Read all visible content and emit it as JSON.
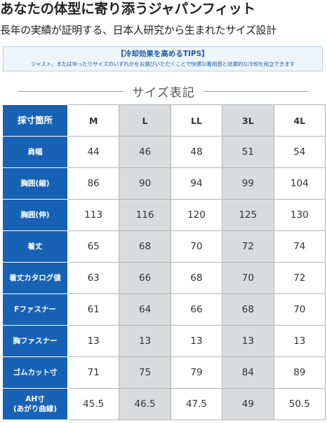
{
  "header": {
    "title": "あなたの体型に寄り添うジャパンフィット",
    "subtitle": "長年の実績が証明する、日本人研究から生まれたサイズ設計"
  },
  "tips": {
    "title": "【冷却効果を高めるTIPS】",
    "text": "ジャスト、またはゆったりサイズのいずれかをお選びいただくことで快適な着用感と効果的な冷却を両立できます"
  },
  "section_title": "サイズ表記",
  "table": {
    "header": [
      "採寸箇所",
      "M",
      "L",
      "LL",
      "3L",
      "4L"
    ],
    "rows": [
      [
        "肩幅",
        44,
        46,
        48,
        51,
        54
      ],
      [
        "胸囲(縮)",
        86,
        90,
        94,
        99,
        104
      ],
      [
        "胸囲(伸)",
        113,
        116,
        120,
        125,
        130
      ],
      [
        "着丈",
        65,
        68,
        70,
        72,
        74
      ],
      [
        "着丈カタログ値",
        63,
        66,
        68,
        70,
        72
      ],
      [
        "Fファスナー",
        61,
        64,
        66,
        68,
        70
      ],
      [
        "胸ファスナー",
        13,
        13,
        13,
        13,
        13
      ],
      [
        "ゴムカット寸",
        71,
        75,
        79,
        84,
        89
      ],
      [
        "AH寸\n(あがり曲線)",
        45.5,
        46.5,
        47.5,
        49,
        50.5
      ]
    ]
  }
}
